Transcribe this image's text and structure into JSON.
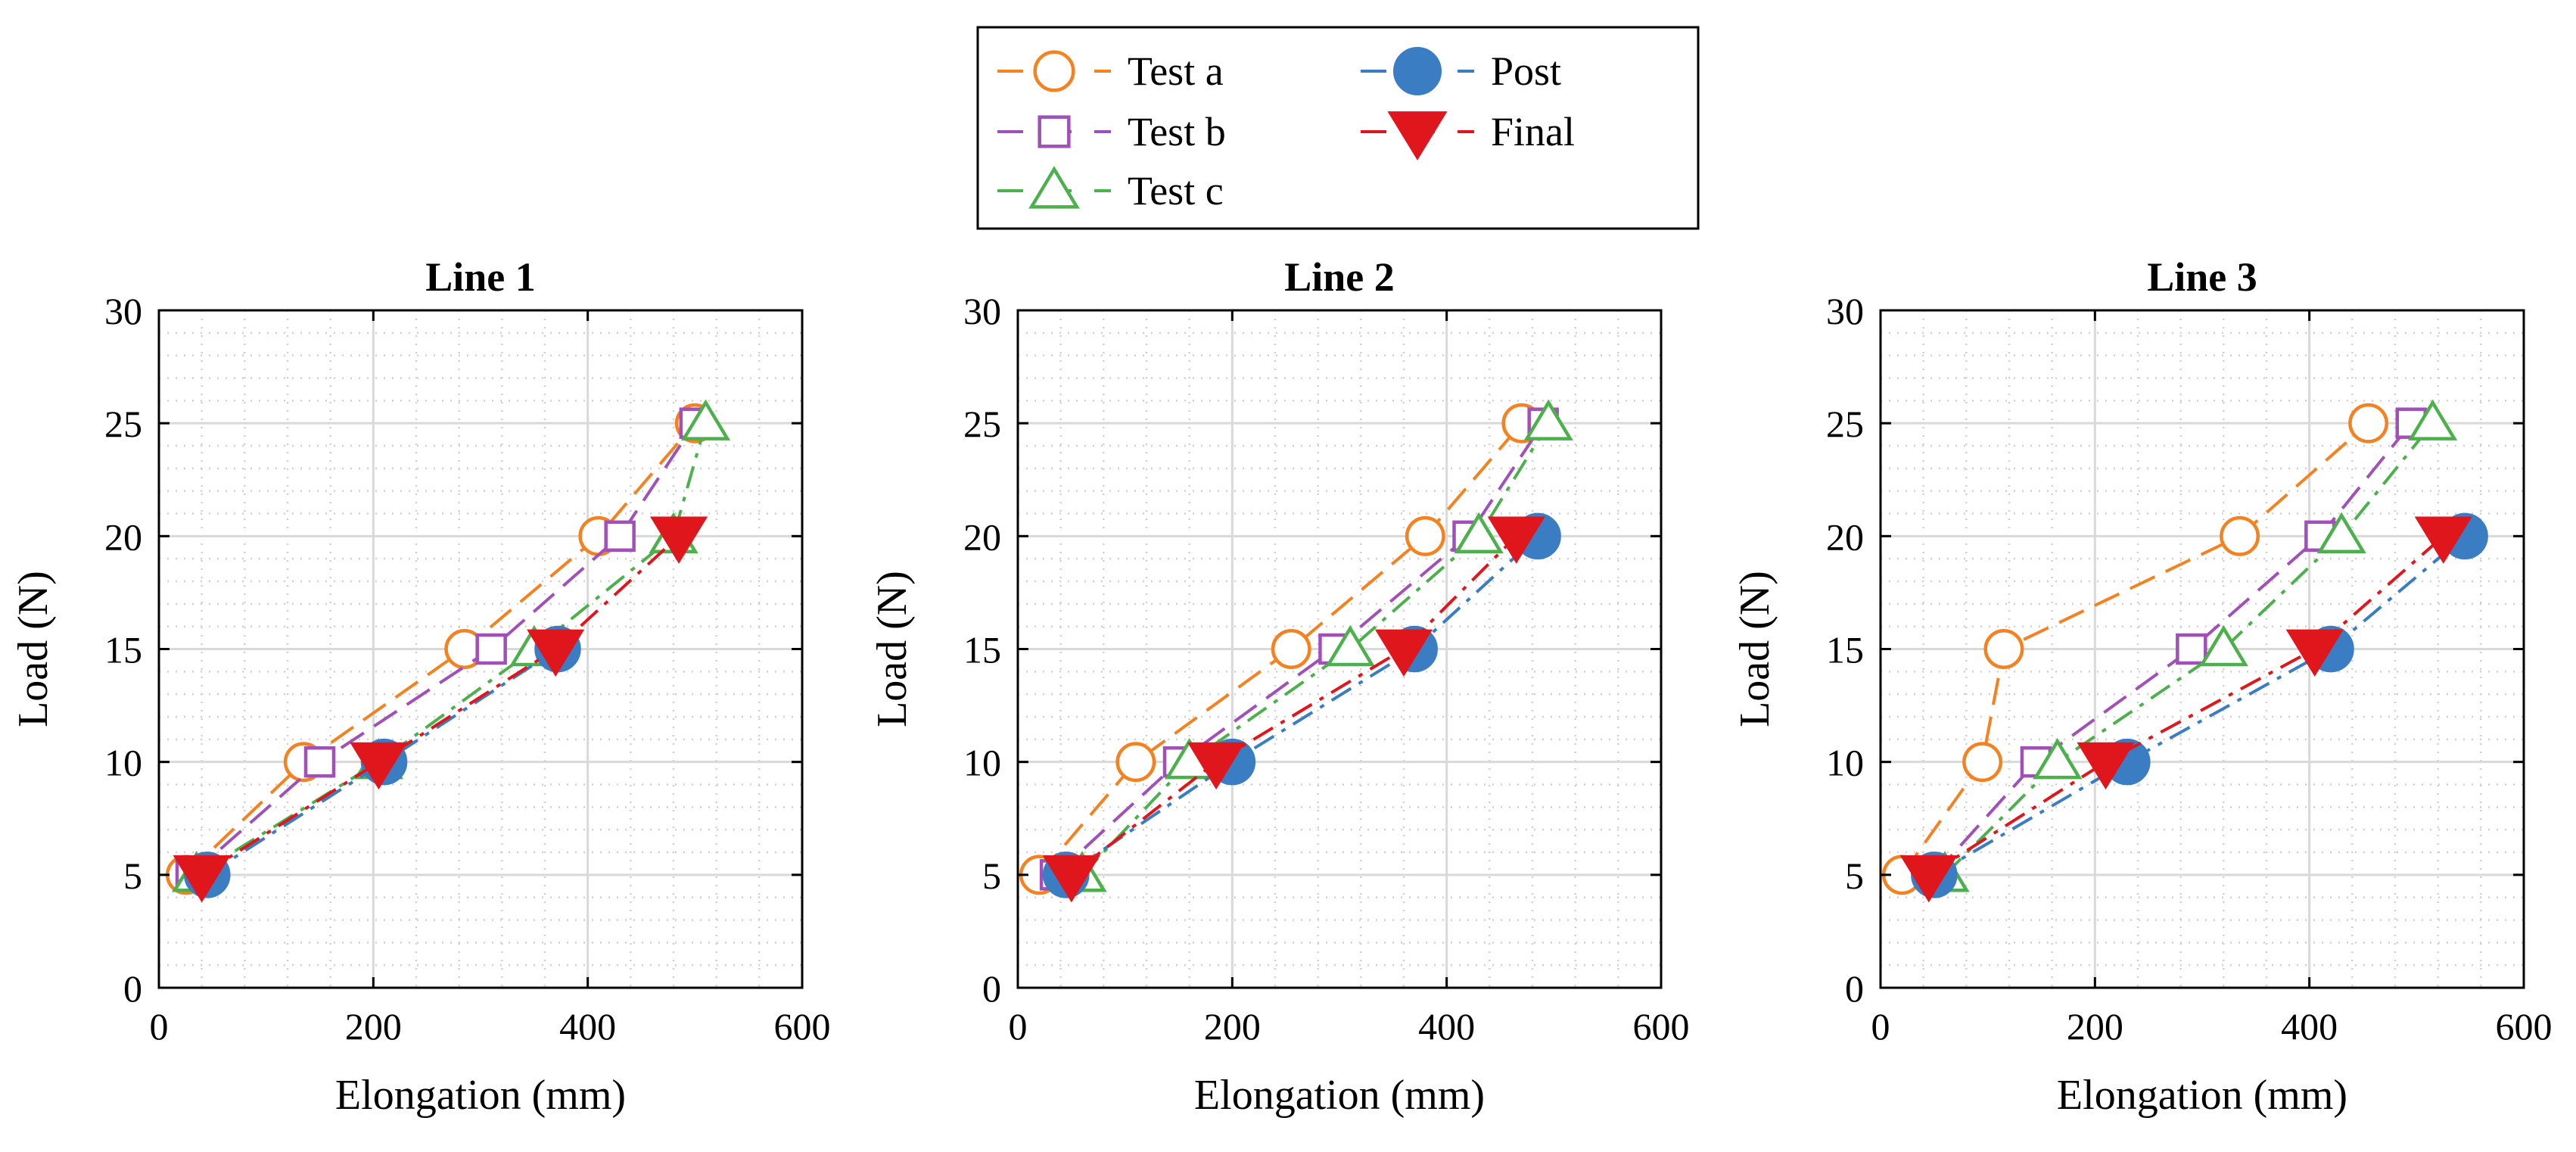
{
  "colors": {
    "test_a": "#F58220",
    "test_b": "#A050B8",
    "test_c": "#4CB04C",
    "post": "#3A7DC2",
    "final": "#E0161D",
    "grid_major": "#D9D9D9",
    "grid_minor": "#D0D0D0",
    "axes": "#000000"
  },
  "legend": {
    "placement": "top-center",
    "entries": [
      {
        "key": "test_a",
        "label": "Test a",
        "marker": "open-circle"
      },
      {
        "key": "test_b",
        "label": "Test b",
        "marker": "open-square"
      },
      {
        "key": "test_c",
        "label": "Test c",
        "marker": "open-triangle-up"
      },
      {
        "key": "post",
        "label": "Post",
        "marker": "filled-circle"
      },
      {
        "key": "final",
        "label": "Final",
        "marker": "filled-triangle-down"
      }
    ]
  },
  "chart_data": [
    {
      "type": "line",
      "title": "Line 1",
      "xlabel": "Elongation (mm)",
      "ylabel": "Load (N)",
      "xlim": [
        0,
        600
      ],
      "ylim": [
        0,
        30
      ],
      "xticks": [
        0,
        200,
        400,
        600
      ],
      "yticks": [
        0,
        5,
        10,
        15,
        20,
        25,
        30
      ],
      "grid": true,
      "series": [
        {
          "key": "test_a",
          "name": "Test a",
          "x": [
            25,
            135,
            285,
            410,
            500
          ],
          "y": [
            5,
            10,
            15,
            20,
            25
          ]
        },
        {
          "key": "test_b",
          "name": "Test b",
          "x": [
            30,
            150,
            310,
            430,
            500
          ],
          "y": [
            5,
            10,
            15,
            20,
            25
          ]
        },
        {
          "key": "test_c",
          "name": "Test c",
          "x": [
            35,
            205,
            350,
            480,
            510
          ],
          "y": [
            5,
            10,
            15,
            20,
            25
          ]
        },
        {
          "key": "post",
          "name": "Post",
          "x": [
            45,
            210,
            372
          ],
          "y": [
            5,
            10,
            15
          ]
        },
        {
          "key": "final",
          "name": "Final",
          "x": [
            40,
            205,
            370,
            485
          ],
          "y": [
            5,
            10,
            15,
            20
          ]
        }
      ]
    },
    {
      "type": "line",
      "title": "Line 2",
      "xlabel": "Elongation (mm)",
      "ylabel": "Load (N)",
      "xlim": [
        0,
        600
      ],
      "ylim": [
        0,
        30
      ],
      "xticks": [
        0,
        200,
        400,
        600
      ],
      "yticks": [
        0,
        5,
        10,
        15,
        20,
        25,
        30
      ],
      "grid": true,
      "series": [
        {
          "key": "test_a",
          "name": "Test a",
          "x": [
            20,
            110,
            255,
            380,
            470
          ],
          "y": [
            5,
            10,
            15,
            20,
            25
          ]
        },
        {
          "key": "test_b",
          "name": "Test b",
          "x": [
            35,
            150,
            295,
            420,
            490
          ],
          "y": [
            5,
            10,
            15,
            20,
            25
          ]
        },
        {
          "key": "test_c",
          "name": "Test c",
          "x": [
            60,
            160,
            310,
            430,
            495
          ],
          "y": [
            5,
            10,
            15,
            20,
            25
          ]
        },
        {
          "key": "post",
          "name": "Post",
          "x": [
            45,
            200,
            370,
            485
          ],
          "y": [
            5,
            10,
            15,
            20
          ]
        },
        {
          "key": "final",
          "name": "Final",
          "x": [
            50,
            185,
            360,
            465
          ],
          "y": [
            5,
            10,
            15,
            20
          ]
        }
      ]
    },
    {
      "type": "line",
      "title": "Line 3",
      "xlabel": "Elongation (mm)",
      "ylabel": "Load (N)",
      "xlim": [
        0,
        600
      ],
      "ylim": [
        0,
        30
      ],
      "xticks": [
        0,
        200,
        400,
        600
      ],
      "yticks": [
        0,
        5,
        10,
        15,
        20,
        25,
        30
      ],
      "grid": true,
      "series": [
        {
          "key": "test_a",
          "name": "Test a",
          "x": [
            20,
            95,
            115,
            335,
            455
          ],
          "y": [
            5,
            10,
            15,
            20,
            25
          ]
        },
        {
          "key": "test_b",
          "name": "Test b",
          "x": [
            50,
            145,
            290,
            410,
            495
          ],
          "y": [
            5,
            10,
            15,
            20,
            25
          ]
        },
        {
          "key": "test_c",
          "name": "Test c",
          "x": [
            60,
            165,
            320,
            430,
            515
          ],
          "y": [
            5,
            10,
            15,
            20,
            25
          ]
        },
        {
          "key": "post",
          "name": "Post",
          "x": [
            50,
            230,
            420,
            545
          ],
          "y": [
            5,
            10,
            15,
            20
          ]
        },
        {
          "key": "final",
          "name": "Final",
          "x": [
            45,
            210,
            405,
            525
          ],
          "y": [
            5,
            10,
            15,
            20
          ]
        }
      ]
    }
  ]
}
